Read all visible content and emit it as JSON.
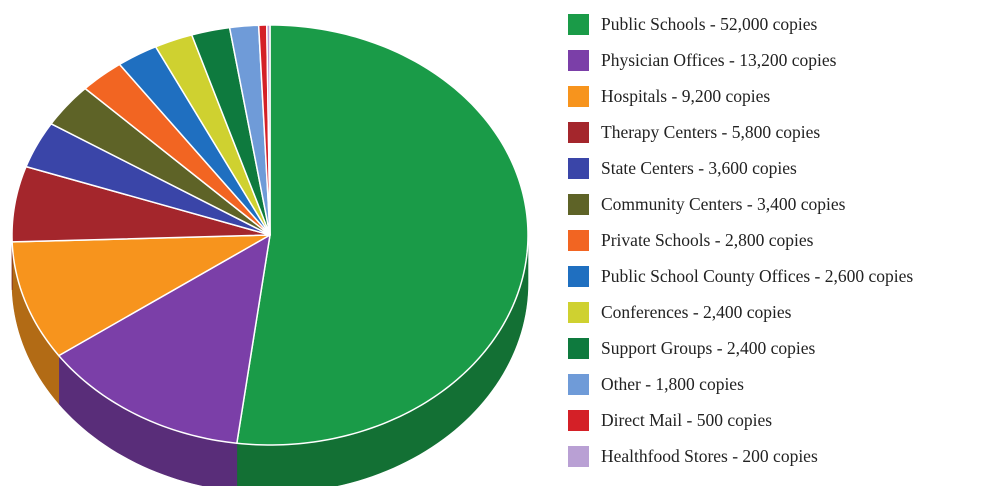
{
  "chart_data": {
    "type": "pie",
    "title": "",
    "style": "3d",
    "unit": "copies",
    "legend_position": "right",
    "slices": [
      {
        "label": "Public Schools - 52,000 copies",
        "category": "Public Schools",
        "value": 52000,
        "color": "#1a9b48"
      },
      {
        "label": "Physician Offices - 13,200 copies",
        "category": "Physician Offices",
        "value": 13200,
        "color": "#7b3fa8"
      },
      {
        "label": "Hospitals - 9,200 copies",
        "category": "Hospitals",
        "value": 9200,
        "color": "#f7941d"
      },
      {
        "label": "Therapy Centers - 5,800 copies",
        "category": "Therapy Centers",
        "value": 5800,
        "color": "#a4262c"
      },
      {
        "label": "State Centers - 3,600 copies",
        "category": "State Centers",
        "value": 3600,
        "color": "#3a45a8"
      },
      {
        "label": "Community Centers - 3,400 copies",
        "category": "Community Centers",
        "value": 3400,
        "color": "#5e6327"
      },
      {
        "label": "Private Schools - 2,800 copies",
        "category": "Private Schools",
        "value": 2800,
        "color": "#f26522"
      },
      {
        "label": "Public School County Offices - 2,600 copies",
        "category": "Public School County Offices",
        "value": 2600,
        "color": "#1f6fc0"
      },
      {
        "label": "Conferences - 2,400 copies",
        "category": "Conferences",
        "value": 2400,
        "color": "#cfd130"
      },
      {
        "label": "Support Groups - 2,400 copies",
        "category": "Support Groups",
        "value": 2400,
        "color": "#0e7a3e"
      },
      {
        "label": "Other - 1,800 copies",
        "category": "Other",
        "value": 1800,
        "color": "#6f9bd8"
      },
      {
        "label": "Direct Mail - 500 copies",
        "category": "Direct Mail",
        "value": 500,
        "color": "#d42027"
      },
      {
        "label": "Healthfood Stores - 200 copies",
        "category": "Healthfood Stores",
        "value": 200,
        "color": "#b9a0d4"
      }
    ]
  }
}
